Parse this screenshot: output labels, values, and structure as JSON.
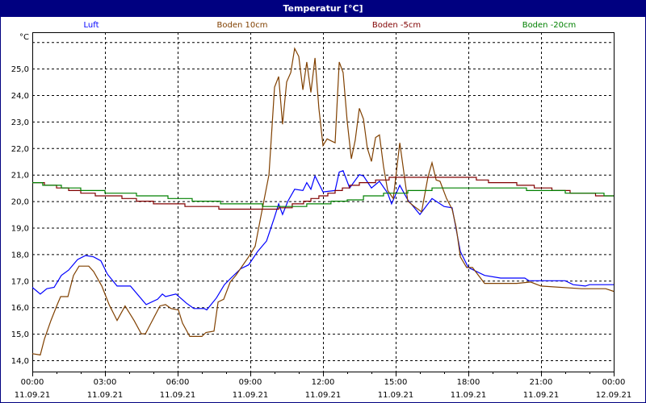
{
  "window": {
    "title": "Temperatur [°C]"
  },
  "chart_data": {
    "type": "line",
    "title": "Temperatur [°C]",
    "ylabel": "°C",
    "ylim": [
      14.0,
      26.0
    ],
    "xlim_hours": [
      0,
      24
    ],
    "grid": true,
    "legend_placement": "top",
    "y_ticks": [
      "14,0",
      "15,0",
      "16,0",
      "17,0",
      "18,0",
      "19,0",
      "20,0",
      "21,0",
      "22,0",
      "23,0",
      "24,0",
      "25,0"
    ],
    "x_ticks": [
      {
        "time": "00:00",
        "date": "11.09.21"
      },
      {
        "time": "03:00",
        "date": "11.09.21"
      },
      {
        "time": "06:00",
        "date": "11.09.21"
      },
      {
        "time": "09:00",
        "date": "11.09.21"
      },
      {
        "time": "12:00",
        "date": "11.09.21"
      },
      {
        "time": "15:00",
        "date": "11.09.21"
      },
      {
        "time": "18:00",
        "date": "11.09.21"
      },
      {
        "time": "21:00",
        "date": "11.09.21"
      },
      {
        "time": "00:00",
        "date": "12.09.21"
      }
    ],
    "series": [
      {
        "name": "Luft",
        "color": "#0000ff",
        "step": false,
        "points": [
          [
            0,
            16.75
          ],
          [
            0.33,
            16.5
          ],
          [
            0.6,
            16.7
          ],
          [
            0.9,
            16.75
          ],
          [
            1.2,
            17.2
          ],
          [
            1.5,
            17.4
          ],
          [
            1.87,
            17.8
          ],
          [
            2.2,
            17.95
          ],
          [
            2.53,
            17.9
          ],
          [
            2.83,
            17.75
          ],
          [
            3.1,
            17.25
          ],
          [
            3.5,
            16.8
          ],
          [
            4.05,
            16.8
          ],
          [
            4.7,
            16.1
          ],
          [
            5.17,
            16.3
          ],
          [
            5.37,
            16.5
          ],
          [
            5.5,
            16.4
          ],
          [
            5.93,
            16.5
          ],
          [
            6.37,
            16.15
          ],
          [
            6.67,
            15.95
          ],
          [
            7.1,
            15.95
          ],
          [
            7.2,
            15.9
          ],
          [
            7.6,
            16.35
          ],
          [
            7.93,
            16.85
          ],
          [
            8.2,
            17.1
          ],
          [
            8.6,
            17.45
          ],
          [
            8.93,
            17.6
          ],
          [
            9.3,
            18.1
          ],
          [
            9.67,
            18.5
          ],
          [
            10,
            19.4
          ],
          [
            10.17,
            19.9
          ],
          [
            10.33,
            19.5
          ],
          [
            10.55,
            20.0
          ],
          [
            10.83,
            20.45
          ],
          [
            11.17,
            20.4
          ],
          [
            11.33,
            20.7
          ],
          [
            11.5,
            20.45
          ],
          [
            11.67,
            20.95
          ],
          [
            12.0,
            20.35
          ],
          [
            12.5,
            20.4
          ],
          [
            12.67,
            21.1
          ],
          [
            12.83,
            21.15
          ],
          [
            13.1,
            20.5
          ],
          [
            13.5,
            21.0
          ],
          [
            13.67,
            20.95
          ],
          [
            14.0,
            20.5
          ],
          [
            14.33,
            20.75
          ],
          [
            14.67,
            20.3
          ],
          [
            14.83,
            19.9
          ],
          [
            15.17,
            20.6
          ],
          [
            15.5,
            20.05
          ],
          [
            15.73,
            19.8
          ],
          [
            16.0,
            19.5
          ],
          [
            16.5,
            20.1
          ],
          [
            17.0,
            19.8
          ],
          [
            17.33,
            19.75
          ],
          [
            17.67,
            18.1
          ],
          [
            18.0,
            17.5
          ],
          [
            18.67,
            17.2
          ],
          [
            19.33,
            17.1
          ],
          [
            20.33,
            17.1
          ],
          [
            20.5,
            17.0
          ],
          [
            22.0,
            17.0
          ],
          [
            22.33,
            16.85
          ],
          [
            22.83,
            16.8
          ],
          [
            23.0,
            16.85
          ],
          [
            24,
            16.85
          ]
        ]
      },
      {
        "name": "Boden 10cm",
        "color": "#804000",
        "step": false,
        "points": [
          [
            0,
            14.25
          ],
          [
            0.33,
            14.2
          ],
          [
            0.5,
            14.8
          ],
          [
            0.77,
            15.5
          ],
          [
            1.03,
            16.1
          ],
          [
            1.17,
            16.4
          ],
          [
            1.47,
            16.4
          ],
          [
            1.7,
            17.2
          ],
          [
            1.93,
            17.55
          ],
          [
            2.33,
            17.55
          ],
          [
            2.53,
            17.35
          ],
          [
            2.87,
            16.8
          ],
          [
            3.17,
            16.1
          ],
          [
            3.5,
            15.5
          ],
          [
            3.83,
            16.05
          ],
          [
            4.2,
            15.5
          ],
          [
            4.5,
            15.0
          ],
          [
            4.67,
            15.0
          ],
          [
            4.87,
            15.35
          ],
          [
            5.27,
            16.05
          ],
          [
            5.5,
            16.1
          ],
          [
            5.73,
            15.95
          ],
          [
            6.03,
            15.9
          ],
          [
            6.2,
            15.4
          ],
          [
            6.5,
            14.9
          ],
          [
            7.0,
            14.9
          ],
          [
            7.17,
            15.05
          ],
          [
            7.5,
            15.1
          ],
          [
            7.67,
            16.2
          ],
          [
            7.9,
            16.3
          ],
          [
            8.17,
            16.95
          ],
          [
            8.4,
            17.2
          ],
          [
            8.7,
            17.6
          ],
          [
            8.93,
            17.9
          ],
          [
            9.2,
            18.3
          ],
          [
            9.43,
            19.4
          ],
          [
            9.77,
            21.0
          ],
          [
            10.0,
            24.3
          ],
          [
            10.17,
            24.7
          ],
          [
            10.33,
            22.9
          ],
          [
            10.5,
            24.5
          ],
          [
            10.67,
            24.85
          ],
          [
            10.83,
            25.76
          ],
          [
            11.0,
            25.46
          ],
          [
            11.17,
            24.2
          ],
          [
            11.33,
            25.25
          ],
          [
            11.5,
            24.1
          ],
          [
            11.67,
            25.4
          ],
          [
            11.83,
            23.5
          ],
          [
            12.0,
            22.1
          ],
          [
            12.17,
            22.35
          ],
          [
            12.5,
            22.2
          ],
          [
            12.67,
            25.25
          ],
          [
            12.83,
            24.85
          ],
          [
            13.0,
            23.0
          ],
          [
            13.17,
            21.6
          ],
          [
            13.33,
            22.3
          ],
          [
            13.5,
            23.5
          ],
          [
            13.67,
            23.1
          ],
          [
            13.83,
            22.0
          ],
          [
            14.0,
            21.5
          ],
          [
            14.17,
            22.4
          ],
          [
            14.33,
            22.5
          ],
          [
            14.5,
            21.3
          ],
          [
            14.67,
            20.4
          ],
          [
            14.9,
            20.1
          ],
          [
            15.17,
            22.2
          ],
          [
            15.5,
            20.0
          ],
          [
            15.77,
            19.8
          ],
          [
            16.07,
            19.6
          ],
          [
            16.33,
            20.9
          ],
          [
            16.5,
            21.45
          ],
          [
            16.67,
            20.8
          ],
          [
            16.83,
            20.75
          ],
          [
            17.1,
            20.1
          ],
          [
            17.33,
            19.7
          ],
          [
            17.5,
            19.0
          ],
          [
            17.67,
            17.9
          ],
          [
            17.93,
            17.5
          ],
          [
            18.17,
            17.5
          ],
          [
            18.67,
            16.9
          ],
          [
            20.0,
            16.9
          ],
          [
            20.57,
            16.95
          ],
          [
            21.0,
            16.8
          ],
          [
            22.67,
            16.7
          ],
          [
            23.67,
            16.7
          ],
          [
            24,
            16.6
          ]
        ]
      },
      {
        "name": "Boden -5cm",
        "color": "#800000",
        "step": true,
        "points": [
          [
            0,
            20.7
          ],
          [
            0.5,
            20.6
          ],
          [
            1.0,
            20.5
          ],
          [
            1.5,
            20.4
          ],
          [
            2.0,
            20.3
          ],
          [
            2.6,
            20.2
          ],
          [
            3.7,
            20.1
          ],
          [
            4.3,
            20.0
          ],
          [
            5.0,
            19.9
          ],
          [
            6.3,
            19.8
          ],
          [
            7.7,
            19.7
          ],
          [
            10.17,
            19.75
          ],
          [
            10.73,
            19.9
          ],
          [
            11.2,
            20.0
          ],
          [
            11.5,
            20.1
          ],
          [
            11.83,
            20.2
          ],
          [
            12.2,
            20.3
          ],
          [
            12.5,
            20.4
          ],
          [
            12.8,
            20.5
          ],
          [
            13.1,
            20.6
          ],
          [
            13.5,
            20.7
          ],
          [
            14.17,
            20.8
          ],
          [
            14.73,
            20.9
          ],
          [
            18.33,
            20.8
          ],
          [
            18.83,
            20.7
          ],
          [
            20.0,
            20.6
          ],
          [
            20.72,
            20.5
          ],
          [
            21.45,
            20.4
          ],
          [
            22.2,
            20.3
          ],
          [
            23.25,
            20.2
          ],
          [
            24,
            20.2
          ]
        ]
      },
      {
        "name": "Boden -20cm",
        "color": "#008000",
        "step": true,
        "points": [
          [
            0,
            20.7
          ],
          [
            0.43,
            20.6
          ],
          [
            1.2,
            20.5
          ],
          [
            2.0,
            20.4
          ],
          [
            3.0,
            20.3
          ],
          [
            4.3,
            20.2
          ],
          [
            5.6,
            20.1
          ],
          [
            6.6,
            20.0
          ],
          [
            7.77,
            19.9
          ],
          [
            9.5,
            19.8
          ],
          [
            11.33,
            19.9
          ],
          [
            12.33,
            20.0
          ],
          [
            13.0,
            20.05
          ],
          [
            13.67,
            20.2
          ],
          [
            14.5,
            20.3
          ],
          [
            15.5,
            20.4
          ],
          [
            16.5,
            20.5
          ],
          [
            20.4,
            20.4
          ],
          [
            22.0,
            20.3
          ],
          [
            23.6,
            20.2
          ],
          [
            24,
            20.2
          ]
        ]
      }
    ]
  }
}
